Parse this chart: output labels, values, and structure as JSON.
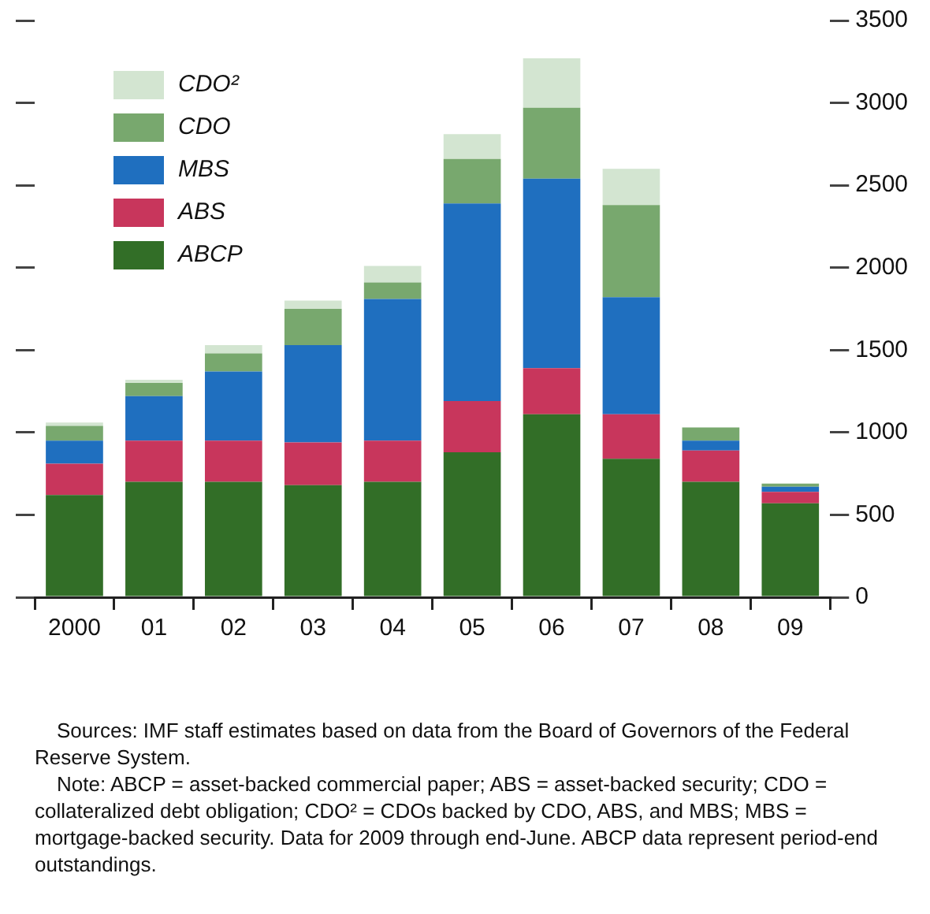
{
  "chart_data": {
    "type": "bar",
    "stacked": true,
    "categories": [
      "2000",
      "01",
      "02",
      "03",
      "04",
      "05",
      "06",
      "07",
      "08",
      "09"
    ],
    "series": [
      {
        "name": "ABCP",
        "color": "#326e27",
        "values": [
          620,
          700,
          700,
          680,
          700,
          880,
          1110,
          840,
          700,
          570
        ]
      },
      {
        "name": "ABS",
        "color": "#c8365c",
        "values": [
          190,
          250,
          250,
          260,
          250,
          310,
          280,
          270,
          190,
          70
        ]
      },
      {
        "name": "MBS",
        "color": "#1f6fbf",
        "values": [
          140,
          270,
          420,
          590,
          860,
          1200,
          1150,
          710,
          60,
          30
        ]
      },
      {
        "name": "CDO",
        "color": "#78a86e",
        "values": [
          90,
          80,
          110,
          220,
          100,
          270,
          430,
          560,
          80,
          20
        ]
      },
      {
        "name": "CDO²",
        "color": "#d3e5d1",
        "values": [
          20,
          20,
          50,
          50,
          100,
          150,
          300,
          220,
          0,
          0
        ]
      }
    ],
    "ylim": [
      0,
      3500
    ],
    "yticks": [
      0,
      500,
      1000,
      1500,
      2000,
      2500,
      3000,
      3500
    ],
    "grid": false,
    "legend": "top left",
    "annotations": [
      "Sources: IMF staff estimates based on data from the Board of Governors of the Federal Reserve System.",
      "Note: ABCP = asset-backed commercial paper; ABS = asset-backed security; CDO = collateralized debt obligation; CDO² = CDOs backed by CDO, ABS, and MBS; MBS = mortgage-backed security. Data for 2009 through end-June. ABCP data represent period-end outstandings."
    ]
  }
}
